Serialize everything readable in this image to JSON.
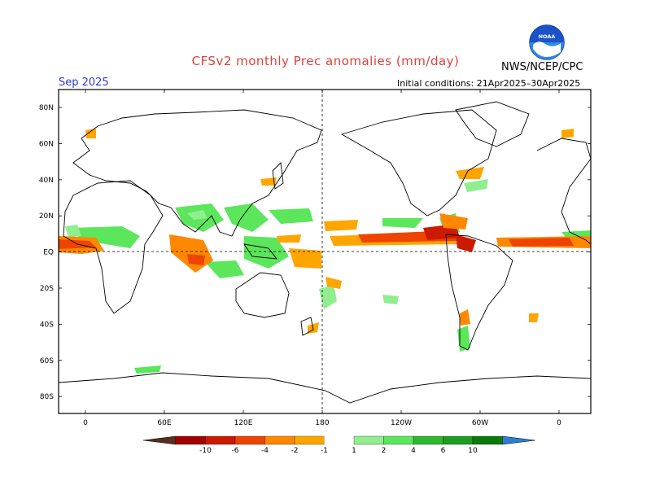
{
  "title": "CFSv2 monthly Prec anomalies (mm/day)",
  "agency": "NWS/NCEP/CPC",
  "logo_text": "NOAA",
  "valid_month": "Sep 2025",
  "initial_conditions": "Initial conditions: 21Apr2025–30Apr2025",
  "lat_labels": [
    "80N",
    "60N",
    "40N",
    "20N",
    "EQ",
    "20S",
    "40S",
    "60S",
    "80S"
  ],
  "lon_labels": [
    "0",
    "60E",
    "120E",
    "180",
    "120W",
    "60W",
    "0"
  ],
  "colorbar": {
    "labels": [
      "-10",
      "-6",
      "-4",
      "-2",
      "-1",
      "1",
      "2",
      "4",
      "6",
      "10"
    ],
    "colors": [
      "#5a2d1e",
      "#a30000",
      "#cc1a00",
      "#ee4400",
      "#ff8800",
      "#ffa500",
      "#ffffff",
      "#90ee90",
      "#5ce65c",
      "#2db82d",
      "#1e9e1e",
      "#0a7a0a",
      "#2a7fd4"
    ]
  }
}
